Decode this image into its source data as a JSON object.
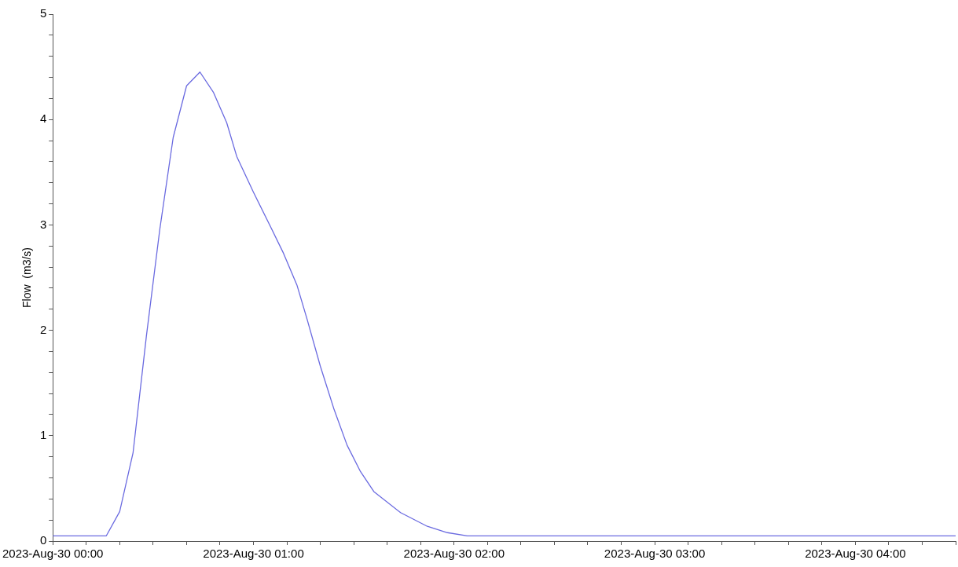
{
  "chart_data": {
    "type": "line",
    "ylabel": "Flow  (m3/s)",
    "x": [
      "2023-08-30T00:00",
      "2023-08-30T00:16",
      "2023-08-30T00:20",
      "2023-08-30T00:24",
      "2023-08-30T00:28",
      "2023-08-30T00:32",
      "2023-08-30T00:36",
      "2023-08-30T00:40",
      "2023-08-30T00:44",
      "2023-08-30T00:48",
      "2023-08-30T00:52",
      "2023-08-30T00:55",
      "2023-08-30T01:00",
      "2023-08-30T01:05",
      "2023-08-30T01:09",
      "2023-08-30T01:13",
      "2023-08-30T01:16",
      "2023-08-30T01:20",
      "2023-08-30T01:24",
      "2023-08-30T01:28",
      "2023-08-30T01:32",
      "2023-08-30T01:36",
      "2023-08-30T01:44",
      "2023-08-30T01:52",
      "2023-08-30T01:58",
      "2023-08-30T02:04",
      "2023-08-30T04:30"
    ],
    "series": [
      {
        "color": "#6a6ae0",
        "values": [
          0.05,
          0.05,
          0.28,
          0.84,
          1.95,
          2.96,
          3.83,
          4.32,
          4.45,
          4.26,
          3.97,
          3.65,
          3.31,
          2.99,
          2.73,
          2.43,
          2.11,
          1.66,
          1.26,
          0.91,
          0.66,
          0.47,
          0.27,
          0.14,
          0.08,
          0.05,
          0.05
        ]
      }
    ],
    "xlim": [
      "2023-08-30T00:00",
      "2023-08-30T04:30"
    ],
    "xticks": [
      {
        "value": "2023-08-30T00:00",
        "label": "2023-Aug-30 00:00"
      },
      {
        "value": "2023-08-30T00:10",
        "label": null
      },
      {
        "value": "2023-08-30T00:20",
        "label": null
      },
      {
        "value": "2023-08-30T00:30",
        "label": null
      },
      {
        "value": "2023-08-30T00:40",
        "label": null
      },
      {
        "value": "2023-08-30T00:50",
        "label": null
      },
      {
        "value": "2023-08-30T01:00",
        "label": "2023-Aug-30 01:00"
      },
      {
        "value": "2023-08-30T01:10",
        "label": null
      },
      {
        "value": "2023-08-30T01:20",
        "label": null
      },
      {
        "value": "2023-08-30T01:30",
        "label": null
      },
      {
        "value": "2023-08-30T01:40",
        "label": null
      },
      {
        "value": "2023-08-30T01:50",
        "label": null
      },
      {
        "value": "2023-08-30T02:00",
        "label": "2023-Aug-30 02:00"
      },
      {
        "value": "2023-08-30T02:10",
        "label": null
      },
      {
        "value": "2023-08-30T02:20",
        "label": null
      },
      {
        "value": "2023-08-30T02:30",
        "label": null
      },
      {
        "value": "2023-08-30T02:40",
        "label": null
      },
      {
        "value": "2023-08-30T02:50",
        "label": null
      },
      {
        "value": "2023-08-30T03:00",
        "label": "2023-Aug-30 03:00"
      },
      {
        "value": "2023-08-30T03:10",
        "label": null
      },
      {
        "value": "2023-08-30T03:20",
        "label": null
      },
      {
        "value": "2023-08-30T03:30",
        "label": null
      },
      {
        "value": "2023-08-30T03:40",
        "label": null
      },
      {
        "value": "2023-08-30T03:50",
        "label": null
      },
      {
        "value": "2023-08-30T04:00",
        "label": "2023-Aug-30 04:00"
      },
      {
        "value": "2023-08-30T04:10",
        "label": null
      },
      {
        "value": "2023-08-30T04:20",
        "label": null
      },
      {
        "value": "2023-08-30T04:30",
        "label": null
      }
    ],
    "ylim": [
      0,
      5
    ],
    "yticks": [
      0,
      {
        "value": 0.2,
        "label": null
      },
      {
        "value": 0.4,
        "label": null
      },
      {
        "value": 0.6,
        "label": null
      },
      {
        "value": 0.8,
        "label": null
      },
      1,
      {
        "value": 1.2,
        "label": null
      },
      {
        "value": 1.4,
        "label": null
      },
      {
        "value": 1.6,
        "label": null
      },
      {
        "value": 1.8,
        "label": null
      },
      2,
      {
        "value": 2.2,
        "label": null
      },
      {
        "value": 2.4,
        "label": null
      },
      {
        "value": 2.6,
        "label": null
      },
      {
        "value": 2.8,
        "label": null
      },
      3,
      {
        "value": 3.2,
        "label": null
      },
      {
        "value": 3.4,
        "label": null
      },
      {
        "value": 3.6,
        "label": null
      },
      {
        "value": 3.8,
        "label": null
      },
      4,
      {
        "value": 4.2,
        "label": null
      },
      {
        "value": 4.4,
        "label": null
      },
      {
        "value": 4.6,
        "label": null
      },
      {
        "value": 4.8,
        "label": null
      },
      5
    ],
    "grid": false,
    "legend": false,
    "marker": "none",
    "line_style": "solid"
  }
}
